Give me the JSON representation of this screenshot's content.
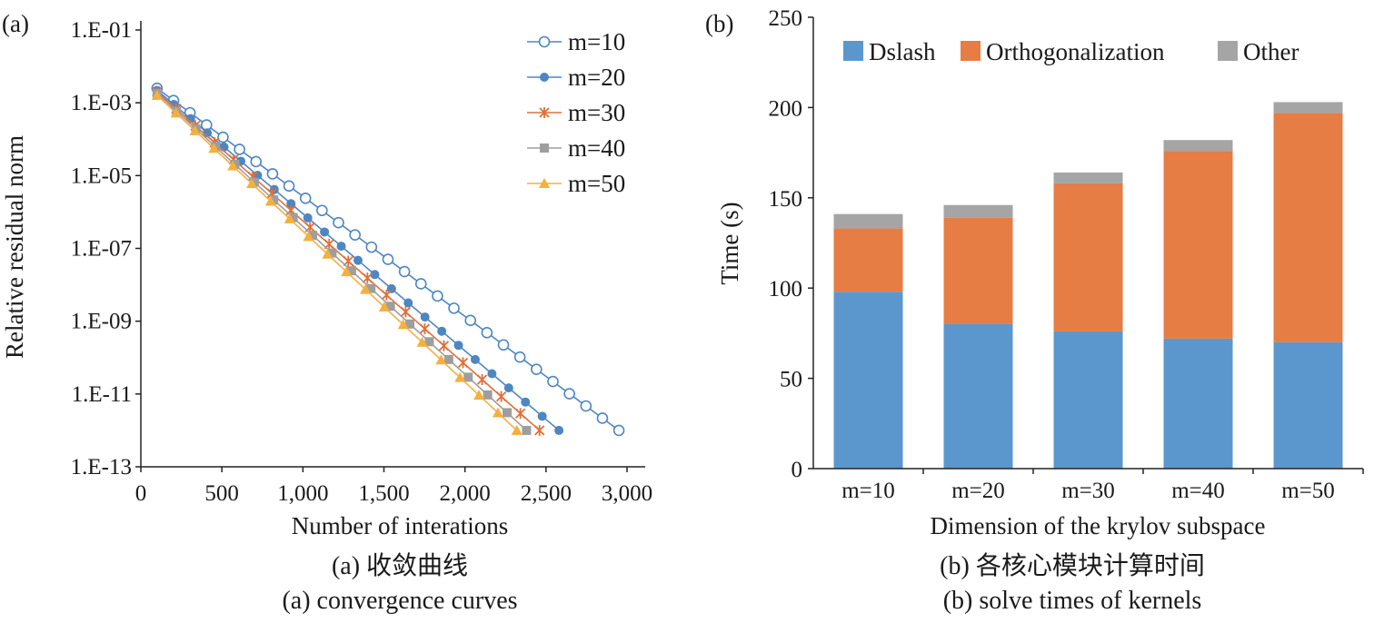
{
  "chart_data": [
    {
      "panel_label": "(a)",
      "type": "line",
      "xlabel": "Number of interations",
      "ylabel": "Relative residual norm",
      "xlim": [
        0,
        3000
      ],
      "ylim_log10": [
        -13,
        -1
      ],
      "yscale": "log",
      "x_tick_labels": [
        "0",
        "500",
        "1,000",
        "1,500",
        "2,000",
        "2,500",
        "3,000"
      ],
      "x_tick_values": [
        0,
        500,
        1000,
        1500,
        2000,
        2500,
        3000
      ],
      "y_tick_labels": [
        "1.E-01",
        "1.E-03",
        "1.E-05",
        "1.E-07",
        "1.E-09",
        "1.E-11",
        "1.E-13"
      ],
      "y_tick_values": [
        0.1,
        0.001,
        1e-05,
        1e-07,
        1e-09,
        1e-11,
        1e-13
      ],
      "legend_position": "top-right",
      "caption_zh": "(a) 收敛曲线",
      "caption_en": "(a) convergence curves",
      "series": [
        {
          "name": "m=10",
          "marker": "open-circle",
          "color": "#4e86c2",
          "start_x": 100,
          "end_x": 2950,
          "start_y": 0.0025,
          "end_y": 1e-12,
          "points": 29
        },
        {
          "name": "m=20",
          "marker": "filled-circle",
          "color": "#4e86c2",
          "start_x": 100,
          "end_x": 2580,
          "start_y": 0.0022,
          "end_y": 1e-12,
          "points": 25
        },
        {
          "name": "m=30",
          "marker": "star",
          "color": "#e0703a",
          "start_x": 100,
          "end_x": 2460,
          "start_y": 0.002,
          "end_y": 1e-12,
          "points": 21
        },
        {
          "name": "m=40",
          "marker": "square",
          "color": "#9e9e9e",
          "start_x": 100,
          "end_x": 2380,
          "start_y": 0.0018,
          "end_y": 1e-12,
          "points": 20
        },
        {
          "name": "m=50",
          "marker": "triangle",
          "color": "#f4b03e",
          "start_x": 100,
          "end_x": 2320,
          "start_y": 0.0016,
          "end_y": 1e-12,
          "points": 20
        }
      ]
    },
    {
      "panel_label": "(b)",
      "type": "bar",
      "stacked": true,
      "xlabel": "Dimension of the krylov subspace",
      "ylabel": "Time (s)",
      "ylim": [
        0,
        250
      ],
      "y_tick_values": [
        0,
        50,
        100,
        150,
        200,
        250
      ],
      "categories": [
        "m=10",
        "m=20",
        "m=30",
        "m=40",
        "m=50"
      ],
      "legend_position": "top",
      "caption_zh": "(b) 各核心模块计算时间",
      "caption_en": "(b) solve times of kernels",
      "series": [
        {
          "name": "Dslash",
          "color": "#5b97cd",
          "values": [
            98,
            80,
            76,
            72,
            70
          ]
        },
        {
          "name": "Orthogonalization",
          "color": "#e57d45",
          "values": [
            35,
            59,
            82,
            104,
            127
          ]
        },
        {
          "name": "Other",
          "color": "#a5a5a5",
          "values": [
            8,
            7,
            6,
            6,
            6
          ]
        }
      ]
    }
  ]
}
